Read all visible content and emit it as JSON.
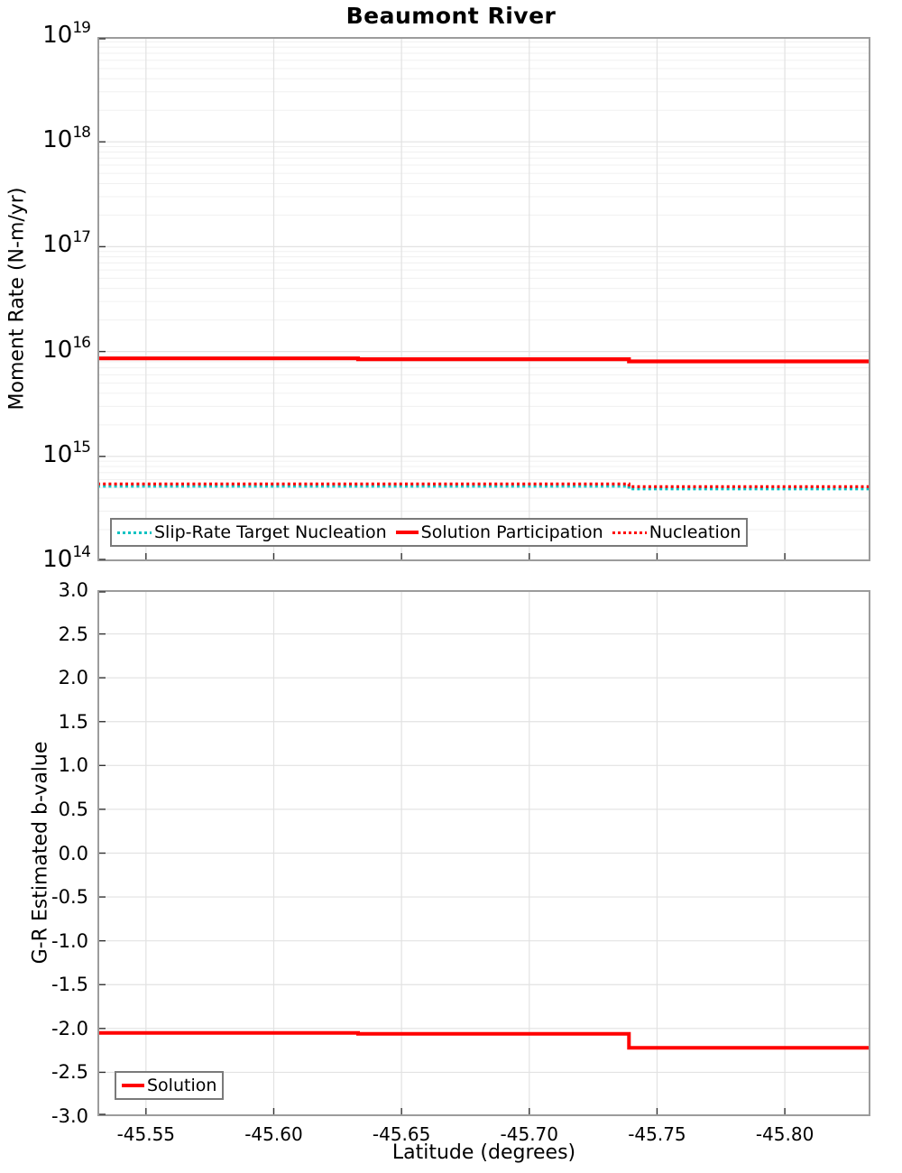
{
  "title": "Beaumont River",
  "colors": {
    "accent_red": "#ff0000",
    "accent_teal": "#00c2c2",
    "axis_border": "#9c9c9c",
    "grid_major": "#e2e2e2",
    "grid_minor": "#f0f0f0",
    "tick": "#333333",
    "text": "#000000",
    "legend_border": "#7a7a7a"
  },
  "chart_data": [
    {
      "type": "line",
      "panel": "moment-rate",
      "ylabel": "Moment Rate (N-m/yr)",
      "y_scale": "log",
      "ylim": [
        100000000000000.0,
        1e+19
      ],
      "y_tick_exponents": [
        19,
        18,
        17,
        16,
        15,
        14
      ],
      "y_tick_base": "10",
      "x_range": [
        -45.531,
        -45.8335
      ],
      "x_tick_values": [
        -45.55,
        -45.6,
        -45.65,
        -45.7,
        -45.75,
        -45.8
      ],
      "x_tick_labels": [
        "-45.55",
        "-45.60",
        "-45.65",
        "-45.70",
        "-45.75",
        "-45.80"
      ],
      "grid": true,
      "legend_position": "lower-left-inside",
      "series": [
        {
          "name": "Slip-Rate Target Nucleation",
          "color": "#00c2c2",
          "style": "dotted",
          "width": 3.2,
          "x": [
            -45.531,
            -45.739,
            -45.739,
            -45.8335
          ],
          "y": [
            520000000000000.0,
            520000000000000.0,
            490000000000000.0,
            490000000000000.0
          ]
        },
        {
          "name": "Solution Participation",
          "color": "#ff0000",
          "style": "solid",
          "width": 4.2,
          "x": [
            -45.531,
            -45.633,
            -45.633,
            -45.739,
            -45.739,
            -45.8335
          ],
          "y": [
            8600000000000000.0,
            8600000000000000.0,
            8450000000000000.0,
            8450000000000000.0,
            8050000000000000.0,
            8050000000000000.0
          ]
        },
        {
          "name": "Nucleation",
          "color": "#ff0000",
          "style": "dotted",
          "width": 3.2,
          "x": [
            -45.531,
            -45.739,
            -45.739,
            -45.8335
          ],
          "y": [
            545000000000000.0,
            545000000000000.0,
            515000000000000.0,
            515000000000000.0
          ]
        }
      ]
    },
    {
      "type": "line",
      "panel": "b-value",
      "ylabel": "G-R Estimated b-value",
      "xlabel": "Latitude (degrees)",
      "y_scale": "linear",
      "ylim": [
        -3.0,
        3.0
      ],
      "y_tick_values": [
        3.0,
        2.5,
        2.0,
        1.5,
        1.0,
        0.5,
        0.0,
        -0.5,
        -1.0,
        -1.5,
        -2.0,
        -2.5,
        -3.0
      ],
      "y_tick_labels": [
        "3.0",
        "2.5",
        "2.0",
        "1.5",
        "1.0",
        "0.5",
        "0.0",
        "-0.5",
        "-1.0",
        "-1.5",
        "-2.0",
        "-2.5",
        "-3.0"
      ],
      "x_range": [
        -45.531,
        -45.8335
      ],
      "x_tick_values": [
        -45.55,
        -45.6,
        -45.65,
        -45.7,
        -45.75,
        -45.8
      ],
      "x_tick_labels": [
        "-45.55",
        "-45.60",
        "-45.65",
        "-45.70",
        "-45.75",
        "-45.80"
      ],
      "grid": true,
      "legend_position": "lower-left-inside",
      "series": [
        {
          "name": "Solution",
          "color": "#ff0000",
          "style": "solid",
          "width": 4.0,
          "x": [
            -45.531,
            -45.633,
            -45.633,
            -45.739,
            -45.739,
            -45.8335
          ],
          "y": [
            -2.05,
            -2.05,
            -2.06,
            -2.06,
            -2.22,
            -2.22
          ]
        }
      ]
    }
  ]
}
